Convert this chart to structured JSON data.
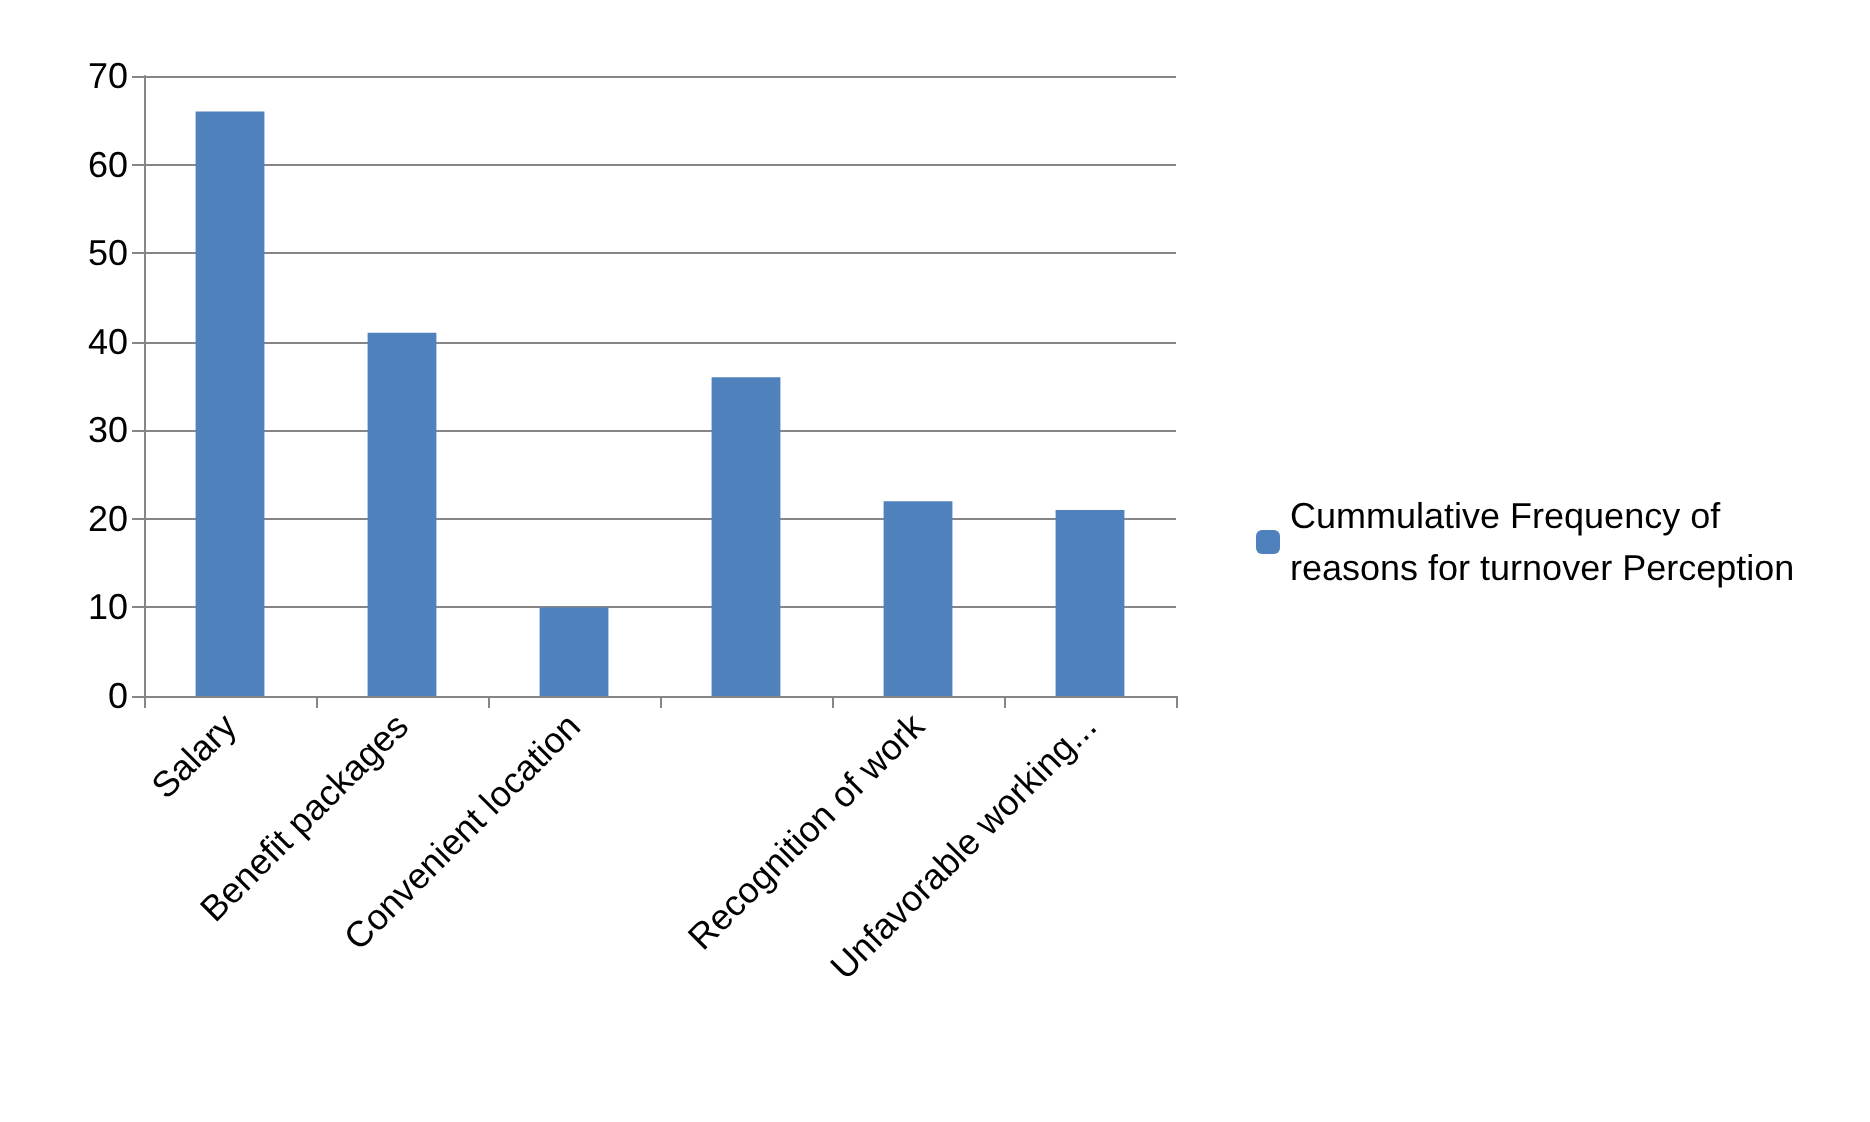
{
  "chart_data": {
    "type": "bar",
    "categories": [
      "Salary",
      "Benefit packages",
      "Convenient location",
      null,
      "Recognition of work",
      "Unfavorable working..."
    ],
    "series": [
      {
        "name": "Cummulative Frequency of reasons for turnover Perception",
        "color": "#4f81bd",
        "values": [
          66,
          41,
          10,
          36,
          22,
          21
        ]
      }
    ],
    "ylim": [
      0,
      70
    ],
    "yticks": [
      0,
      10,
      20,
      30,
      40,
      50,
      60,
      70
    ],
    "grid": "y",
    "legend": "right"
  }
}
